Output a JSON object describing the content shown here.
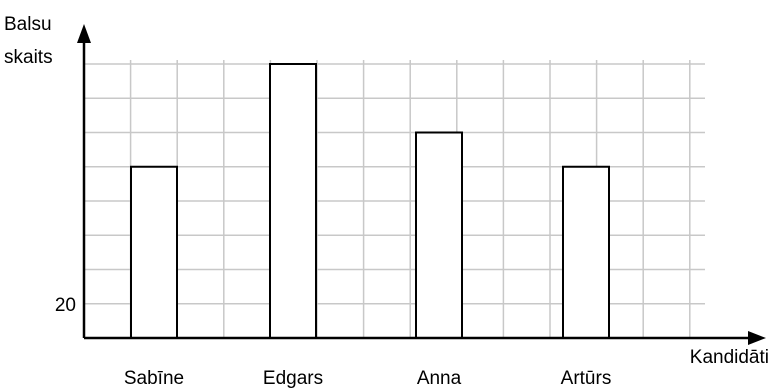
{
  "chart_data": {
    "type": "bar",
    "ylabel_line1": "Balsu",
    "ylabel_line2": "skaits",
    "xlabel": "Kandidāti",
    "categories": [
      "Sabīne",
      "Edgars",
      "Anna",
      "Artūrs"
    ],
    "values": [
      60,
      90,
      70,
      60
    ],
    "y_tick_labels": [
      {
        "value": 20,
        "label": "20"
      }
    ],
    "ylim": [
      10,
      90
    ],
    "grid": true,
    "colors": {
      "grid": "#c8c8c8",
      "axis": "#000000",
      "bar_fill": "#ffffff",
      "bar_stroke": "#000000"
    }
  }
}
